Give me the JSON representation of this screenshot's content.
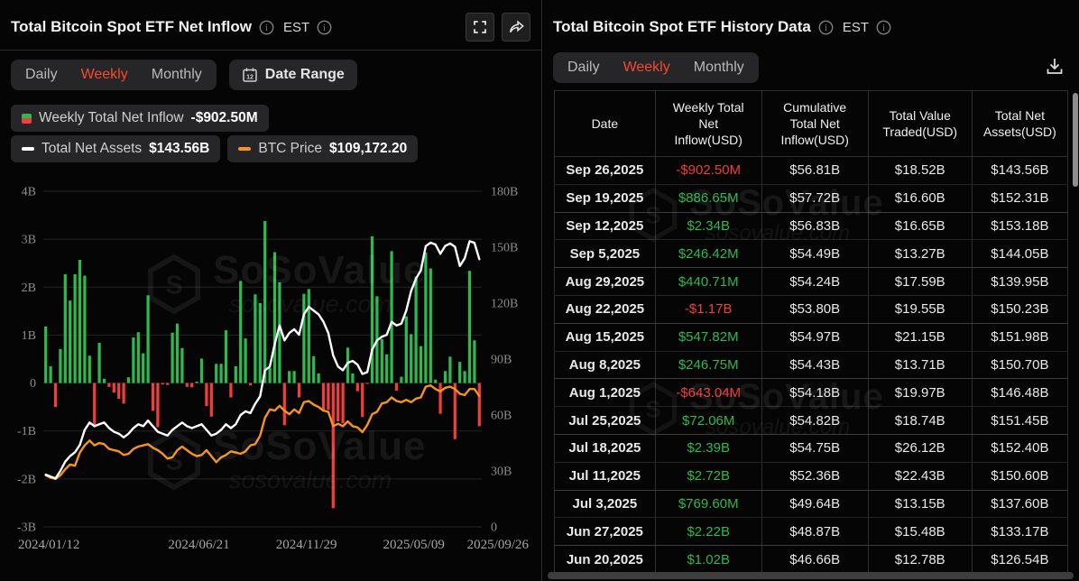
{
  "watermark": {
    "brand": "SoSoValue",
    "domain": "sosovalue.com"
  },
  "colors": {
    "accent_active_tab": "#f54a2e",
    "positive": "#2eb850",
    "negative": "#f23d3d",
    "assets_line": "#ffffff",
    "btc_line": "#f7941d",
    "grid": "#242424",
    "axis_text": "#8d8d8d"
  },
  "left_panel": {
    "title": "Total Bitcoin Spot ETF Net Inflow",
    "est_label": "EST",
    "tabs": [
      "Daily",
      "Weekly",
      "Monthly"
    ],
    "active_tab": "Weekly",
    "date_range_label": "Date Range",
    "legend": [
      {
        "name": "Weekly Total Net Inflow",
        "value": "-$902.50M"
      },
      {
        "name": "Total Net Assets",
        "value": "$143.56B"
      },
      {
        "name": "BTC Price",
        "value": "$109,172.20"
      }
    ]
  },
  "chart_data": {
    "type": "bar",
    "title": "Total Bitcoin Spot ETF Net Inflow (Weekly)",
    "x_tick_labels": [
      "2024/01/12",
      "2024/06/21",
      "2024/11/29",
      "2025/05/09",
      "2025/09/26"
    ],
    "left_axis": {
      "ticks": [
        "4B",
        "3B",
        "2B",
        "1B",
        "0",
        "-1B",
        "-2B",
        "-3B"
      ],
      "min": -3,
      "max": 4,
      "unit": "USD B"
    },
    "right_axis": {
      "ticks": [
        "180B",
        "150B",
        "120B",
        "90B",
        "60B",
        "30B",
        "0"
      ],
      "min": 0,
      "max": 180,
      "unit": "USD B"
    },
    "btc_axis": {
      "min": 0,
      "max": 280,
      "unit": "USD K (hidden axis)"
    },
    "grid": true,
    "legend_position": "top",
    "series": [
      {
        "name": "Weekly Total Net Inflow",
        "type": "bar",
        "axis": "left",
        "unit": "B USD",
        "values": [
          1.18,
          0.35,
          -0.5,
          0.71,
          2.27,
          1.72,
          2.27,
          2.57,
          2.24,
          0.57,
          -0.89,
          0.84,
          0.09,
          -0.08,
          -0.2,
          -0.33,
          -0.43,
          0.12,
          0.95,
          1.06,
          0.62,
          1.83,
          -0.58,
          -0.92,
          -0.03,
          -0.04,
          1.05,
          1.24,
          0.73,
          -0.08,
          -0.09,
          0.03,
          0.51,
          -0.48,
          -0.7,
          0.4,
          0.4,
          1.1,
          -0.3,
          0.35,
          2.13,
          0.93,
          -0.05,
          1.85,
          1.67,
          3.38,
          0.32,
          2.73,
          2.1,
          -0.88,
          0.25,
          0.25,
          -0.3,
          1.86,
          1.96,
          0.56,
          0.2,
          -0.59,
          -0.56,
          -2.61,
          -0.8,
          -0.84,
          0.74,
          0.2,
          -0.17,
          -0.71,
          -0.01,
          3.06,
          1.81,
          0.92,
          0.6,
          2.75,
          -0.16,
          0.13,
          1.39,
          1.02,
          2.22,
          0.77,
          2.72,
          2.39,
          0.07,
          -0.64,
          0.25,
          0.55,
          -1.17,
          0.44,
          0.25,
          2.34,
          0.89,
          -0.9
        ]
      },
      {
        "name": "Total Net Assets",
        "type": "line",
        "axis": "right",
        "unit": "B USD",
        "values": [
          28,
          27,
          26,
          30,
          35,
          38,
          40,
          44,
          52,
          56,
          54,
          55,
          56,
          53,
          51,
          50,
          48,
          50,
          53,
          55,
          54,
          57,
          54,
          51,
          50,
          49,
          52,
          54,
          56,
          54,
          53,
          54,
          55,
          52,
          49,
          50,
          52,
          55,
          53,
          55,
          60,
          62,
          61,
          66,
          70,
          84,
          86,
          98,
          108,
          100,
          104,
          106,
          103,
          114,
          118,
          116,
          114,
          110,
          104,
          92,
          86,
          84,
          88,
          89,
          87,
          82,
          83,
          95,
          100,
          102,
          103,
          110,
          108,
          109,
          116,
          126.54,
          133.17,
          137.6,
          150.6,
          152.4,
          151.45,
          146.48,
          150.7,
          151.98,
          150.23,
          139.95,
          144.05,
          153.18,
          152.31,
          143.56
        ]
      },
      {
        "name": "BTC Price",
        "type": "line",
        "axis": "btc",
        "unit": "K USD",
        "values": [
          43,
          41,
          40,
          43,
          48,
          52,
          51,
          62,
          68,
          72,
          68,
          70,
          69,
          65,
          64,
          63,
          60,
          61,
          65,
          67,
          68,
          69,
          66,
          64,
          61,
          57,
          58,
          64,
          67,
          64,
          61,
          59,
          60,
          64,
          59,
          54,
          58,
          60,
          63,
          62,
          61,
          63,
          68,
          69,
          76,
          91,
          98,
          97,
          101,
          97,
          94,
          98,
          95,
          104,
          105,
          102,
          100,
          97,
          96,
          84,
          86,
          84,
          88,
          84,
          83,
          79,
          85,
          94,
          96,
          103,
          104,
          108,
          105,
          104,
          106,
          104,
          107,
          108,
          117,
          118,
          115,
          113,
          116,
          117,
          115,
          111,
          110,
          115,
          115,
          109.17
        ]
      }
    ]
  },
  "right_panel": {
    "title": "Total Bitcoin Spot ETF History Data",
    "est_label": "EST",
    "tabs": [
      "Daily",
      "Weekly",
      "Monthly"
    ],
    "active_tab": "Weekly",
    "table": {
      "columns": [
        "Date",
        "Weekly Total Net Inflow(USD)",
        "Cumulative Total Net Inflow(USD)",
        "Total Value Traded(USD)",
        "Total Net Assets(USD)"
      ],
      "rows": [
        {
          "date": "Sep 26,2025",
          "inflow": "-$902.50M",
          "sign": "neg",
          "cumulative": "$56.81B",
          "traded": "$18.52B",
          "assets": "$143.56B"
        },
        {
          "date": "Sep 19,2025",
          "inflow": "$886.65M",
          "sign": "pos",
          "cumulative": "$57.72B",
          "traded": "$16.60B",
          "assets": "$152.31B"
        },
        {
          "date": "Sep 12,2025",
          "inflow": "$2.34B",
          "sign": "pos",
          "cumulative": "$56.83B",
          "traded": "$16.65B",
          "assets": "$153.18B"
        },
        {
          "date": "Sep 5,2025",
          "inflow": "$246.42M",
          "sign": "pos",
          "cumulative": "$54.49B",
          "traded": "$13.27B",
          "assets": "$144.05B"
        },
        {
          "date": "Aug 29,2025",
          "inflow": "$440.71M",
          "sign": "pos",
          "cumulative": "$54.24B",
          "traded": "$17.59B",
          "assets": "$139.95B"
        },
        {
          "date": "Aug 22,2025",
          "inflow": "-$1.17B",
          "sign": "neg",
          "cumulative": "$53.80B",
          "traded": "$19.55B",
          "assets": "$150.23B"
        },
        {
          "date": "Aug 15,2025",
          "inflow": "$547.82M",
          "sign": "pos",
          "cumulative": "$54.97B",
          "traded": "$21.15B",
          "assets": "$151.98B"
        },
        {
          "date": "Aug 8,2025",
          "inflow": "$246.75M",
          "sign": "pos",
          "cumulative": "$54.43B",
          "traded": "$13.71B",
          "assets": "$150.70B"
        },
        {
          "date": "Aug 1,2025",
          "inflow": "-$643.04M",
          "sign": "neg",
          "cumulative": "$54.18B",
          "traded": "$19.97B",
          "assets": "$146.48B"
        },
        {
          "date": "Jul 25,2025",
          "inflow": "$72.06M",
          "sign": "pos",
          "cumulative": "$54.82B",
          "traded": "$18.74B",
          "assets": "$151.45B"
        },
        {
          "date": "Jul 18,2025",
          "inflow": "$2.39B",
          "sign": "pos",
          "cumulative": "$54.75B",
          "traded": "$26.12B",
          "assets": "$152.40B"
        },
        {
          "date": "Jul 11,2025",
          "inflow": "$2.72B",
          "sign": "pos",
          "cumulative": "$52.36B",
          "traded": "$22.43B",
          "assets": "$150.60B"
        },
        {
          "date": "Jul 3,2025",
          "inflow": "$769.60M",
          "sign": "pos",
          "cumulative": "$49.64B",
          "traded": "$13.15B",
          "assets": "$137.60B"
        },
        {
          "date": "Jun 27,2025",
          "inflow": "$2.22B",
          "sign": "pos",
          "cumulative": "$48.87B",
          "traded": "$15.48B",
          "assets": "$133.17B"
        },
        {
          "date": "Jun 20,2025",
          "inflow": "$1.02B",
          "sign": "pos",
          "cumulative": "$46.66B",
          "traded": "$12.78B",
          "assets": "$126.54B"
        }
      ]
    }
  }
}
